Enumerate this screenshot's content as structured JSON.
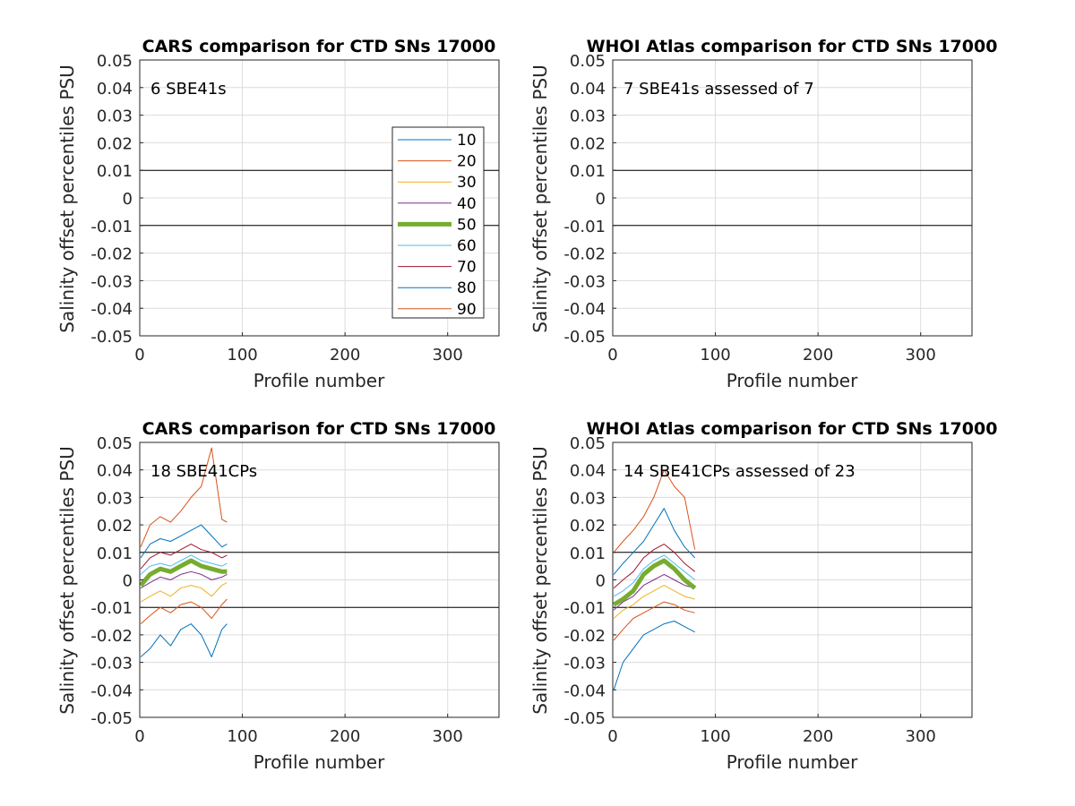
{
  "colors": {
    "p10": "#0072BD",
    "p20": "#D95319",
    "p30": "#EDB120",
    "p40": "#7E2F8E",
    "p50": "#77AC30",
    "p60": "#4DBEEE",
    "p70": "#A2142F",
    "p80": "#0072BD",
    "p90": "#D95319"
  },
  "legend": {
    "entries": [
      "10",
      "20",
      "30",
      "40",
      "50",
      "60",
      "70",
      "80",
      "90"
    ]
  },
  "chart_data": [
    {
      "type": "line",
      "title": "CARS comparison for CTD SNs 17000",
      "annotation": "6 SBE41s",
      "xlabel": "Profile number",
      "ylabel": "Salinity offset percentiles PSU",
      "xlim": [
        0,
        350
      ],
      "ylim": [
        -0.05,
        0.05
      ],
      "xticks": [
        "0",
        "100",
        "200",
        "300"
      ],
      "yticks": [
        "0.05",
        "0.04",
        "0.03",
        "0.02",
        "0.01",
        "0",
        "-0.01",
        "-0.02",
        "-0.03",
        "-0.04",
        "-0.05"
      ],
      "reference_lines": [
        0.01,
        -0.01
      ],
      "grid": true,
      "legend_position": "right",
      "x": [],
      "series": []
    },
    {
      "type": "line",
      "title": "WHOI Atlas comparison for CTD SNs 17000",
      "annotation": "7 SBE41s assessed of 7",
      "xlabel": "Profile number",
      "ylabel": "Salinity offset percentiles PSU",
      "xlim": [
        0,
        350
      ],
      "ylim": [
        -0.05,
        0.05
      ],
      "xticks": [
        "0",
        "100",
        "200",
        "300"
      ],
      "yticks": [
        "0.05",
        "0.04",
        "0.03",
        "0.02",
        "0.01",
        "0",
        "-0.01",
        "-0.02",
        "-0.03",
        "-0.04",
        "-0.05"
      ],
      "reference_lines": [
        0.01,
        -0.01
      ],
      "grid": true,
      "x": [],
      "series": []
    },
    {
      "type": "line",
      "title": "CARS comparison for CTD SNs 17000",
      "annotation": "18 SBE41CPs",
      "xlabel": "Profile number",
      "ylabel": "Salinity offset percentiles PSU",
      "xlim": [
        0,
        350
      ],
      "ylim": [
        -0.05,
        0.05
      ],
      "xticks": [
        "0",
        "100",
        "200",
        "300"
      ],
      "yticks": [
        "0.05",
        "0.04",
        "0.03",
        "0.02",
        "0.01",
        "0",
        "-0.01",
        "-0.02",
        "-0.03",
        "-0.04",
        "-0.05"
      ],
      "reference_lines": [
        0.01,
        -0.01
      ],
      "grid": true,
      "x": [
        1,
        10,
        20,
        30,
        40,
        50,
        60,
        70,
        80,
        85
      ],
      "series": [
        {
          "name": "10",
          "values": [
            -0.028,
            -0.025,
            -0.02,
            -0.024,
            -0.018,
            -0.016,
            -0.02,
            -0.028,
            -0.018,
            -0.016
          ]
        },
        {
          "name": "20",
          "values": [
            -0.016,
            -0.013,
            -0.01,
            -0.012,
            -0.009,
            -0.008,
            -0.01,
            -0.014,
            -0.009,
            -0.007
          ]
        },
        {
          "name": "30",
          "values": [
            -0.008,
            -0.006,
            -0.004,
            -0.006,
            -0.003,
            -0.002,
            -0.003,
            -0.006,
            -0.002,
            -0.001
          ]
        },
        {
          "name": "40",
          "values": [
            -0.003,
            -0.001,
            0.001,
            0.0,
            0.002,
            0.003,
            0.002,
            0.0,
            0.001,
            0.002
          ]
        },
        {
          "name": "50",
          "values": [
            -0.002,
            0.002,
            0.004,
            0.003,
            0.005,
            0.007,
            0.005,
            0.004,
            0.003,
            0.003
          ]
        },
        {
          "name": "60",
          "values": [
            0.002,
            0.005,
            0.006,
            0.005,
            0.007,
            0.009,
            0.007,
            0.006,
            0.005,
            0.006
          ]
        },
        {
          "name": "70",
          "values": [
            0.004,
            0.008,
            0.01,
            0.009,
            0.011,
            0.013,
            0.011,
            0.01,
            0.008,
            0.009
          ]
        },
        {
          "name": "80",
          "values": [
            0.008,
            0.013,
            0.015,
            0.014,
            0.016,
            0.018,
            0.02,
            0.016,
            0.012,
            0.013
          ]
        },
        {
          "name": "90",
          "values": [
            0.012,
            0.02,
            0.023,
            0.021,
            0.025,
            0.03,
            0.034,
            0.048,
            0.022,
            0.021
          ]
        }
      ]
    },
    {
      "type": "line",
      "title": "WHOI Atlas comparison for CTD SNs 17000",
      "annotation": "14 SBE41CPs assessed of 23",
      "xlabel": "Profile number",
      "ylabel": "Salinity offset percentiles PSU",
      "xlim": [
        0,
        350
      ],
      "ylim": [
        -0.05,
        0.05
      ],
      "xticks": [
        "0",
        "100",
        "200",
        "300"
      ],
      "yticks": [
        "0.05",
        "0.04",
        "0.03",
        "0.02",
        "0.01",
        "0",
        "-0.01",
        "-0.02",
        "-0.03",
        "-0.04",
        "-0.05"
      ],
      "reference_lines": [
        0.01,
        -0.01
      ],
      "grid": true,
      "x": [
        1,
        10,
        20,
        30,
        40,
        50,
        60,
        70,
        80
      ],
      "series": [
        {
          "name": "10",
          "values": [
            -0.04,
            -0.03,
            -0.025,
            -0.02,
            -0.018,
            -0.016,
            -0.015,
            -0.017,
            -0.019
          ]
        },
        {
          "name": "20",
          "values": [
            -0.022,
            -0.018,
            -0.014,
            -0.012,
            -0.01,
            -0.008,
            -0.009,
            -0.011,
            -0.012
          ]
        },
        {
          "name": "30",
          "values": [
            -0.014,
            -0.011,
            -0.009,
            -0.006,
            -0.004,
            -0.002,
            -0.004,
            -0.006,
            -0.007
          ]
        },
        {
          "name": "40",
          "values": [
            -0.011,
            -0.008,
            -0.006,
            -0.002,
            0.0,
            0.002,
            0.0,
            -0.002,
            -0.003
          ]
        },
        {
          "name": "50",
          "values": [
            -0.009,
            -0.007,
            -0.004,
            0.002,
            0.005,
            0.007,
            0.004,
            0.0,
            -0.003
          ]
        },
        {
          "name": "60",
          "values": [
            -0.006,
            -0.004,
            -0.001,
            0.004,
            0.007,
            0.009,
            0.006,
            0.003,
            0.0
          ]
        },
        {
          "name": "70",
          "values": [
            -0.003,
            0.0,
            0.003,
            0.008,
            0.011,
            0.013,
            0.01,
            0.006,
            0.003
          ]
        },
        {
          "name": "80",
          "values": [
            0.002,
            0.006,
            0.01,
            0.014,
            0.02,
            0.026,
            0.018,
            0.012,
            0.008
          ]
        },
        {
          "name": "90",
          "values": [
            0.01,
            0.014,
            0.018,
            0.023,
            0.03,
            0.04,
            0.034,
            0.03,
            0.011
          ]
        }
      ]
    }
  ]
}
